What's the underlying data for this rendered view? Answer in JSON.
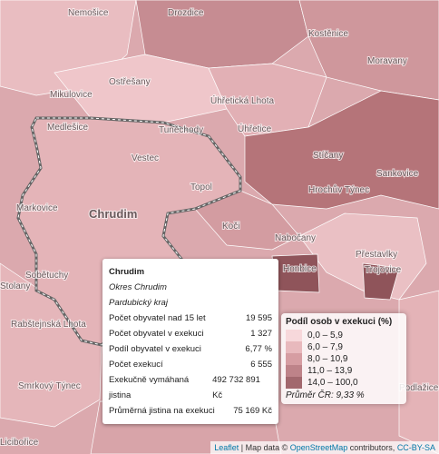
{
  "places": [
    "Nemošice",
    "Drozdice",
    "Kostěnice",
    "Moravany",
    "Ostřešany",
    "Mikulovice",
    "Úhřetická Lhota",
    "Medlešice",
    "Tuněchody",
    "Úhřetice",
    "Vestec",
    "Stíčany",
    "Sankovice",
    "Hrochův Týnec",
    "Topol",
    "Chrudim",
    "Markovice",
    "Koči",
    "Nabočany",
    "Přestavlky",
    "Honbice",
    "Trojovice",
    "Sobětuchy",
    "Stolany",
    "Rabštejnská Lhota",
    "Smrkový Týnec",
    "Podlažice",
    "Licibořice"
  ],
  "popup": {
    "title": "Chrudim",
    "district": "Okres Chrudim",
    "region": "Pardubický kraj",
    "rows": [
      [
        "Počet obyvatel nad 15 let",
        "19 595"
      ],
      [
        "Počet obyvatel v exekuci",
        "1 327"
      ],
      [
        "Podíl obyvatel v exekuci",
        "6,77 %"
      ],
      [
        "Počet exekucí",
        "6 555"
      ],
      [
        "Exekučně vymáhaná jistina",
        "492 732 891 Kč"
      ],
      [
        "Průměrná jistina na exekuci",
        "75 169 Kč"
      ]
    ]
  },
  "legend": {
    "title": "Podíl osob v exekuci (%)",
    "items": [
      {
        "label": "0,0 – 5,9",
        "color": "#f6d5d8"
      },
      {
        "label": "6,0 – 7,9",
        "color": "#e6b2b7"
      },
      {
        "label": "8,0 – 10,9",
        "color": "#d19499"
      },
      {
        "label": "11,0 – 13,9",
        "color": "#b7777d"
      },
      {
        "label": "14,0 – 100,0",
        "color": "#98595f"
      }
    ],
    "note": "Průměr ČR: 9,33 %"
  },
  "attribution": {
    "leaflet": "Leaflet",
    "sep": " | Map data © ",
    "osm": "OpenStreetMap",
    "mid": " contributors, ",
    "license": "CC-BY-SA"
  }
}
